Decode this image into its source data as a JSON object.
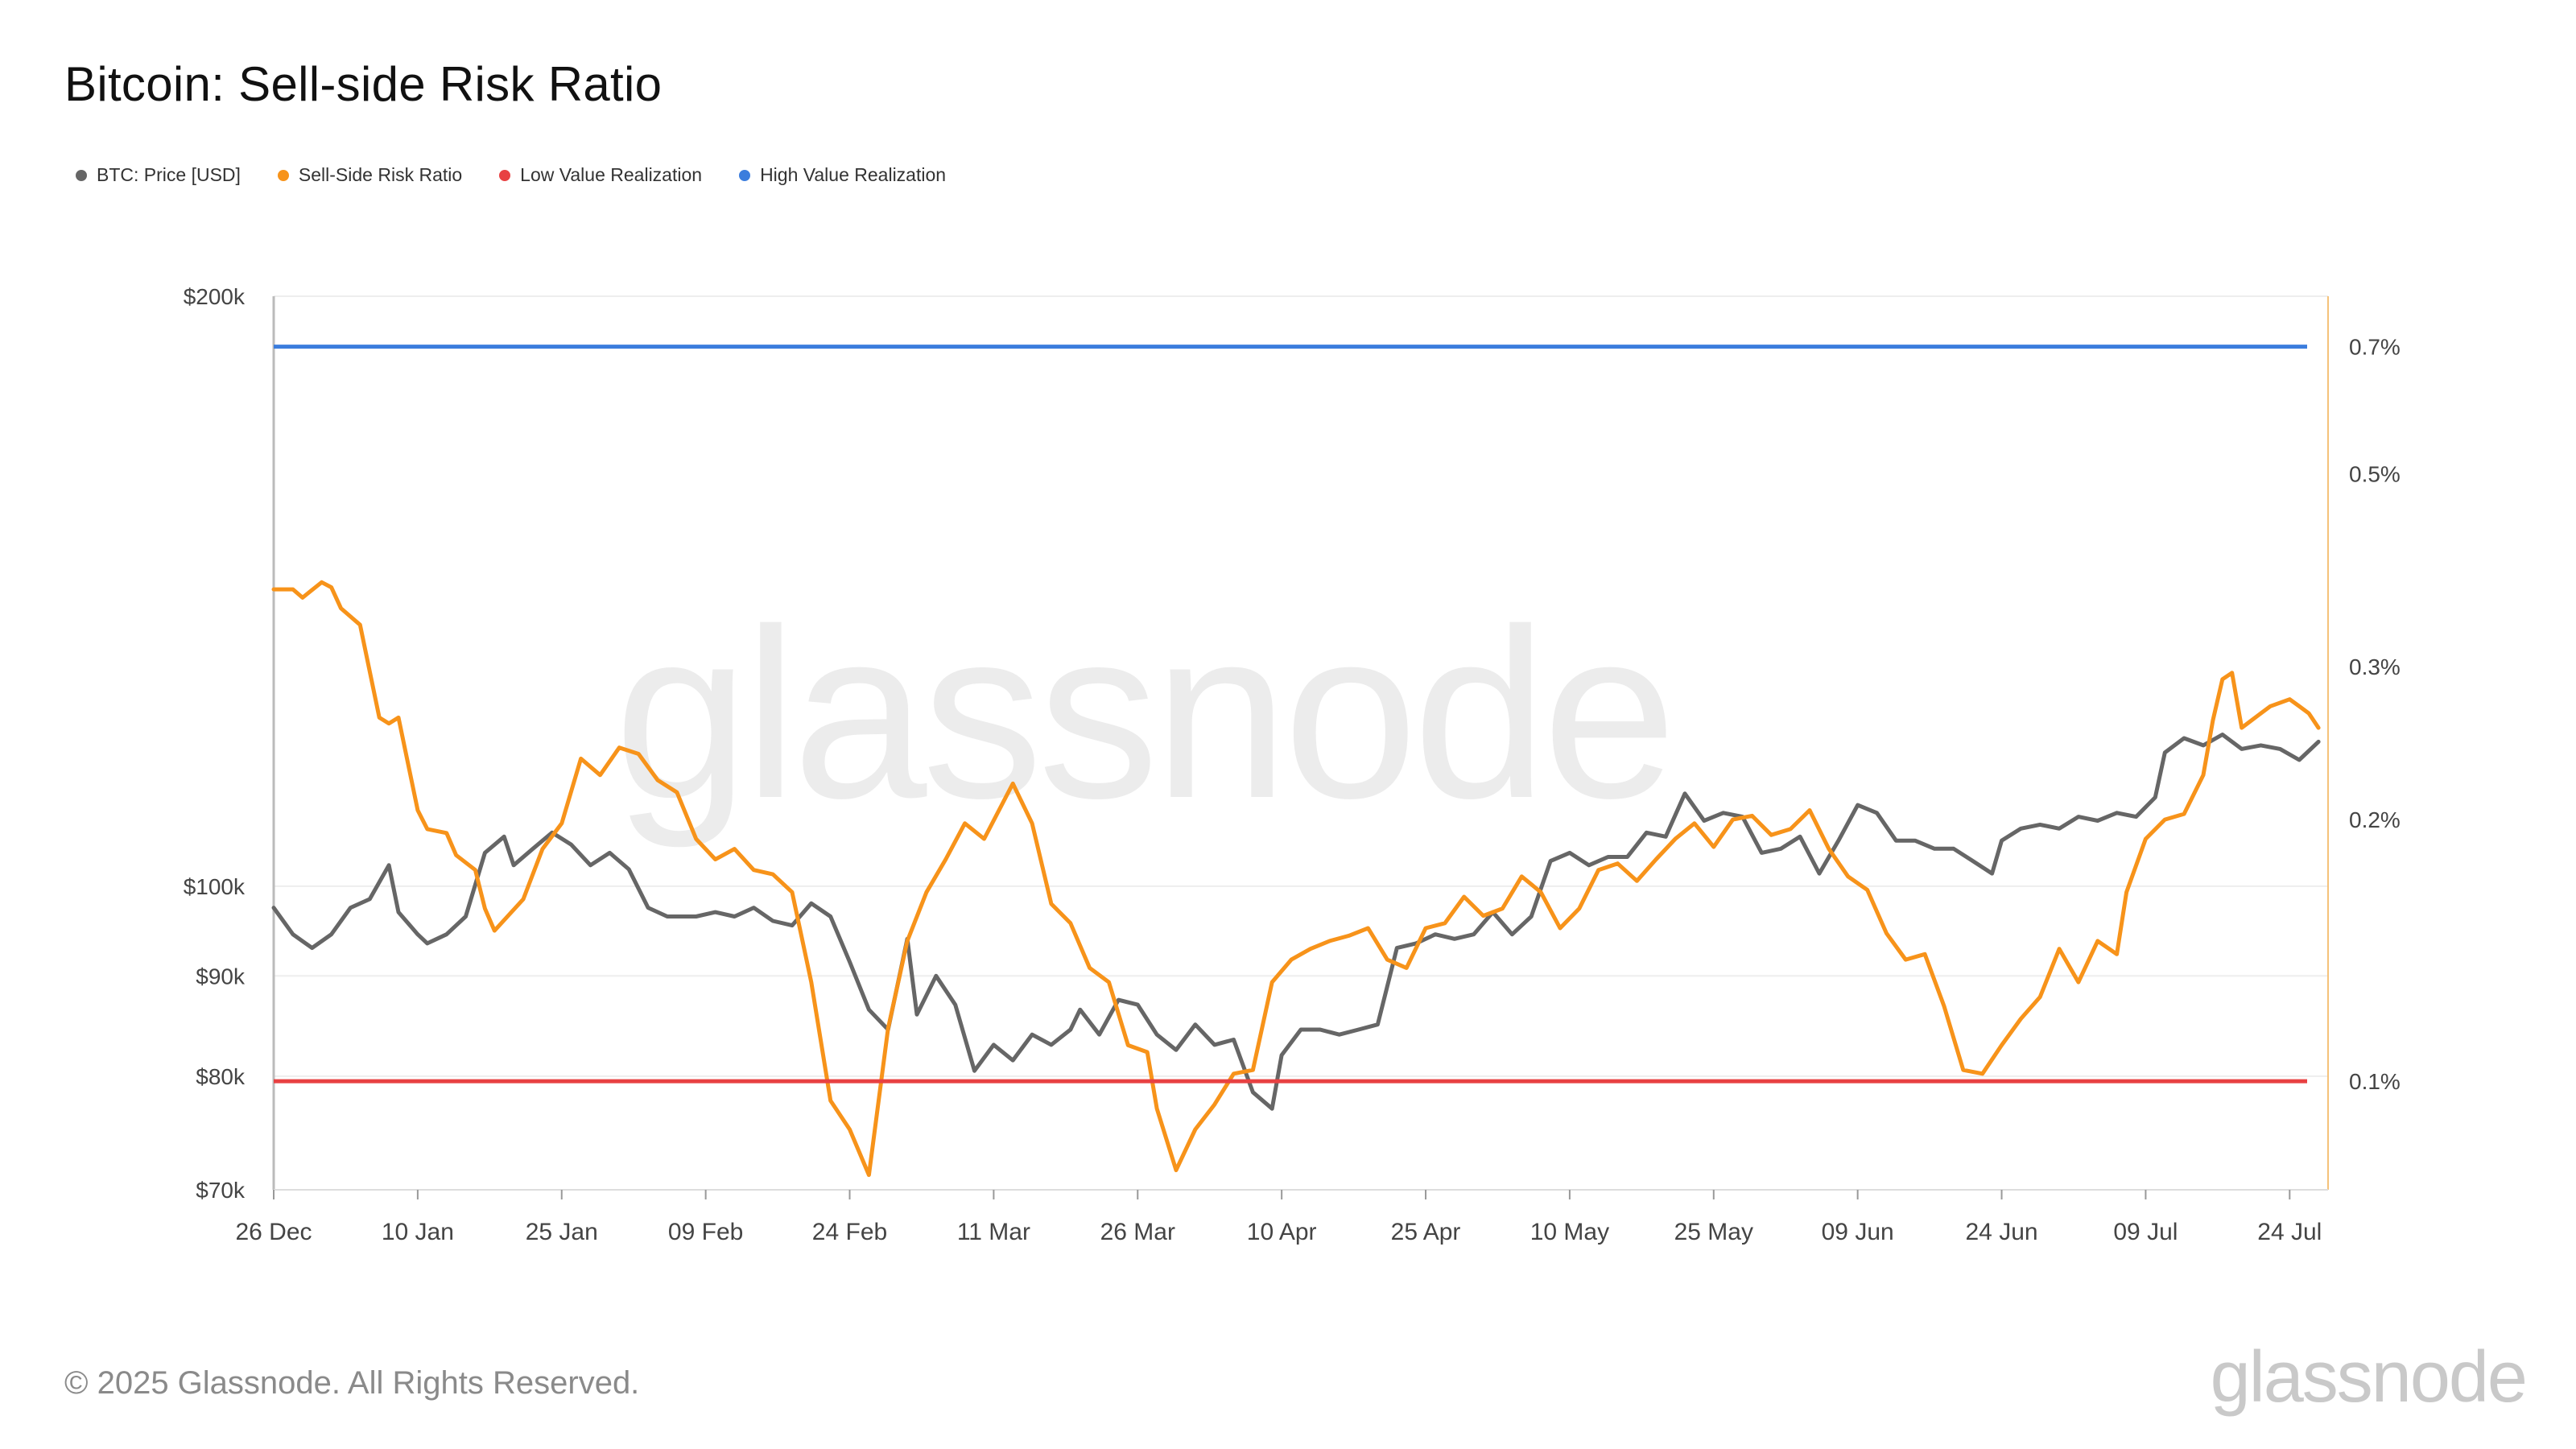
{
  "title": "Bitcoin: Sell-side Risk Ratio",
  "legend": [
    {
      "label": "BTC: Price [USD]",
      "color": "#666666"
    },
    {
      "label": "Sell-Side Risk Ratio",
      "color": "#F7931A"
    },
    {
      "label": "Low Value Realization",
      "color": "#E84142"
    },
    {
      "label": "High Value Realization",
      "color": "#3B7DDD"
    }
  ],
  "watermark": "glassnode",
  "footer": {
    "copyright": "© 2025 Glassnode. All Rights Reserved.",
    "logo": "glassnode"
  },
  "chart_data": {
    "type": "line",
    "x_start": "2024-12-26",
    "x_end": "2025-07-28",
    "x_ticks": [
      "26 Dec",
      "10 Jan",
      "25 Jan",
      "09 Feb",
      "24 Feb",
      "11 Mar",
      "26 Mar",
      "10 Apr",
      "25 Apr",
      "10 May",
      "25 May",
      "09 Jun",
      "24 Jun",
      "09 Jul",
      "24 Jul"
    ],
    "y_left": {
      "scale": "log",
      "range": [
        70000,
        200000
      ],
      "ticks": [
        {
          "v": 70000,
          "label": "$70k"
        },
        {
          "v": 80000,
          "label": "$80k"
        },
        {
          "v": 90000,
          "label": "$90k"
        },
        {
          "v": 100000,
          "label": "$100k"
        },
        {
          "v": 200000,
          "label": "$200k"
        }
      ]
    },
    "y_right": {
      "scale": "log",
      "range": [
        0.075,
        0.8
      ],
      "ticks": [
        {
          "v": 0.1,
          "label": "0.1%"
        },
        {
          "v": 0.2,
          "label": "0.2%"
        },
        {
          "v": 0.3,
          "label": "0.3%"
        },
        {
          "v": 0.5,
          "label": "0.5%"
        },
        {
          "v": 0.7,
          "label": "0.7%"
        }
      ]
    },
    "grid": "horizontal",
    "legend_position": "top-left",
    "series": [
      {
        "name": "BTC: Price [USD]",
        "color": "#666666",
        "axis": "left",
        "points": [
          [
            "2024-12-26",
            97500
          ],
          [
            "2024-12-28",
            94500
          ],
          [
            "2024-12-30",
            93000
          ],
          [
            "2025-01-01",
            94500
          ],
          [
            "2025-01-03",
            97500
          ],
          [
            "2025-01-05",
            98500
          ],
          [
            "2025-01-07",
            102500
          ],
          [
            "2025-01-08",
            97000
          ],
          [
            "2025-01-10",
            94500
          ],
          [
            "2025-01-11",
            93500
          ],
          [
            "2025-01-13",
            94500
          ],
          [
            "2025-01-15",
            96500
          ],
          [
            "2025-01-17",
            104000
          ],
          [
            "2025-01-19",
            106000
          ],
          [
            "2025-01-20",
            102500
          ],
          [
            "2025-01-22",
            104500
          ],
          [
            "2025-01-24",
            106500
          ],
          [
            "2025-01-26",
            105000
          ],
          [
            "2025-01-28",
            102500
          ],
          [
            "2025-01-30",
            104000
          ],
          [
            "2025-02-01",
            102000
          ],
          [
            "2025-02-03",
            97500
          ],
          [
            "2025-02-05",
            96500
          ],
          [
            "2025-02-08",
            96500
          ],
          [
            "2025-02-10",
            97000
          ],
          [
            "2025-02-12",
            96500
          ],
          [
            "2025-02-14",
            97500
          ],
          [
            "2025-02-16",
            96000
          ],
          [
            "2025-02-18",
            95500
          ],
          [
            "2025-02-20",
            98000
          ],
          [
            "2025-02-22",
            96500
          ],
          [
            "2025-02-24",
            91500
          ],
          [
            "2025-02-26",
            86500
          ],
          [
            "2025-02-28",
            84500
          ],
          [
            "2025-03-02",
            94000
          ],
          [
            "2025-03-03",
            86000
          ],
          [
            "2025-03-05",
            90000
          ],
          [
            "2025-03-07",
            87000
          ],
          [
            "2025-03-09",
            80500
          ],
          [
            "2025-03-11",
            83000
          ],
          [
            "2025-03-13",
            81500
          ],
          [
            "2025-03-15",
            84000
          ],
          [
            "2025-03-17",
            83000
          ],
          [
            "2025-03-19",
            84500
          ],
          [
            "2025-03-20",
            86500
          ],
          [
            "2025-03-22",
            84000
          ],
          [
            "2025-03-24",
            87500
          ],
          [
            "2025-03-26",
            87000
          ],
          [
            "2025-03-28",
            84000
          ],
          [
            "2025-03-30",
            82500
          ],
          [
            "2025-04-01",
            85000
          ],
          [
            "2025-04-03",
            83000
          ],
          [
            "2025-04-05",
            83500
          ],
          [
            "2025-04-07",
            78500
          ],
          [
            "2025-04-09",
            77000
          ],
          [
            "2025-04-10",
            82000
          ],
          [
            "2025-04-12",
            84500
          ],
          [
            "2025-04-14",
            84500
          ],
          [
            "2025-04-16",
            84000
          ],
          [
            "2025-04-18",
            84500
          ],
          [
            "2025-04-20",
            85000
          ],
          [
            "2025-04-22",
            93000
          ],
          [
            "2025-04-24",
            93500
          ],
          [
            "2025-04-26",
            94500
          ],
          [
            "2025-04-28",
            94000
          ],
          [
            "2025-04-30",
            94500
          ],
          [
            "2025-05-02",
            97000
          ],
          [
            "2025-05-04",
            94500
          ],
          [
            "2025-05-06",
            96500
          ],
          [
            "2025-05-08",
            103000
          ],
          [
            "2025-05-10",
            104000
          ],
          [
            "2025-05-12",
            102500
          ],
          [
            "2025-05-14",
            103500
          ],
          [
            "2025-05-16",
            103500
          ],
          [
            "2025-05-18",
            106500
          ],
          [
            "2025-05-20",
            106000
          ],
          [
            "2025-05-22",
            111500
          ],
          [
            "2025-05-24",
            108000
          ],
          [
            "2025-05-26",
            109000
          ],
          [
            "2025-05-28",
            108500
          ],
          [
            "2025-05-30",
            104000
          ],
          [
            "2025-06-01",
            104500
          ],
          [
            "2025-06-03",
            106000
          ],
          [
            "2025-06-05",
            101500
          ],
          [
            "2025-06-07",
            105500
          ],
          [
            "2025-06-09",
            110000
          ],
          [
            "2025-06-11",
            109000
          ],
          [
            "2025-06-13",
            105500
          ],
          [
            "2025-06-15",
            105500
          ],
          [
            "2025-06-17",
            104500
          ],
          [
            "2025-06-19",
            104500
          ],
          [
            "2025-06-21",
            103000
          ],
          [
            "2025-06-23",
            101500
          ],
          [
            "2025-06-24",
            105500
          ],
          [
            "2025-06-26",
            107000
          ],
          [
            "2025-06-28",
            107500
          ],
          [
            "2025-06-30",
            107000
          ],
          [
            "2025-07-02",
            108500
          ],
          [
            "2025-07-04",
            108000
          ],
          [
            "2025-07-06",
            109000
          ],
          [
            "2025-07-08",
            108500
          ],
          [
            "2025-07-10",
            111000
          ],
          [
            "2025-07-11",
            117000
          ],
          [
            "2025-07-13",
            119000
          ],
          [
            "2025-07-15",
            118000
          ],
          [
            "2025-07-17",
            119500
          ],
          [
            "2025-07-19",
            117500
          ],
          [
            "2025-07-21",
            118000
          ],
          [
            "2025-07-23",
            117500
          ],
          [
            "2025-07-25",
            116000
          ],
          [
            "2025-07-27",
            118500
          ]
        ]
      },
      {
        "name": "Sell-Side Risk Ratio",
        "color": "#F7931A",
        "axis": "right",
        "points": [
          [
            "2024-12-26",
            0.368
          ],
          [
            "2024-12-28",
            0.368
          ],
          [
            "2024-12-29",
            0.36
          ],
          [
            "2024-12-31",
            0.375
          ],
          [
            "2025-01-01",
            0.37
          ],
          [
            "2025-01-02",
            0.35
          ],
          [
            "2025-01-04",
            0.335
          ],
          [
            "2025-01-06",
            0.262
          ],
          [
            "2025-01-07",
            0.258
          ],
          [
            "2025-01-08",
            0.262
          ],
          [
            "2025-01-10",
            0.205
          ],
          [
            "2025-01-11",
            0.195
          ],
          [
            "2025-01-13",
            0.193
          ],
          [
            "2025-01-14",
            0.182
          ],
          [
            "2025-01-16",
            0.175
          ],
          [
            "2025-01-17",
            0.158
          ],
          [
            "2025-01-18",
            0.149
          ],
          [
            "2025-01-21",
            0.162
          ],
          [
            "2025-01-23",
            0.185
          ],
          [
            "2025-01-25",
            0.198
          ],
          [
            "2025-01-27",
            0.235
          ],
          [
            "2025-01-29",
            0.225
          ],
          [
            "2025-01-31",
            0.242
          ],
          [
            "2025-02-02",
            0.238
          ],
          [
            "2025-02-04",
            0.222
          ],
          [
            "2025-02-06",
            0.215
          ],
          [
            "2025-02-08",
            0.19
          ],
          [
            "2025-02-10",
            0.18
          ],
          [
            "2025-02-12",
            0.185
          ],
          [
            "2025-02-14",
            0.175
          ],
          [
            "2025-02-16",
            0.173
          ],
          [
            "2025-02-18",
            0.165
          ],
          [
            "2025-02-20",
            0.13
          ],
          [
            "2025-02-22",
            0.095
          ],
          [
            "2025-02-24",
            0.088
          ],
          [
            "2025-02-26",
            0.078
          ],
          [
            "2025-02-28",
            0.115
          ],
          [
            "2025-03-02",
            0.145
          ],
          [
            "2025-03-04",
            0.165
          ],
          [
            "2025-03-06",
            0.18
          ],
          [
            "2025-03-08",
            0.198
          ],
          [
            "2025-03-10",
            0.19
          ],
          [
            "2025-03-13",
            0.22
          ],
          [
            "2025-03-15",
            0.198
          ],
          [
            "2025-03-17",
            0.16
          ],
          [
            "2025-03-19",
            0.152
          ],
          [
            "2025-03-21",
            0.135
          ],
          [
            "2025-03-23",
            0.13
          ],
          [
            "2025-03-25",
            0.11
          ],
          [
            "2025-03-27",
            0.108
          ],
          [
            "2025-03-28",
            0.093
          ],
          [
            "2025-03-30",
            0.079
          ],
          [
            "2025-04-01",
            0.088
          ],
          [
            "2025-04-03",
            0.094
          ],
          [
            "2025-04-05",
            0.102
          ],
          [
            "2025-04-07",
            0.103
          ],
          [
            "2025-04-09",
            0.13
          ],
          [
            "2025-04-11",
            0.138
          ],
          [
            "2025-04-13",
            0.142
          ],
          [
            "2025-04-15",
            0.145
          ],
          [
            "2025-04-17",
            0.147
          ],
          [
            "2025-04-19",
            0.15
          ],
          [
            "2025-04-21",
            0.138
          ],
          [
            "2025-04-23",
            0.135
          ],
          [
            "2025-04-25",
            0.15
          ],
          [
            "2025-04-27",
            0.152
          ],
          [
            "2025-04-29",
            0.163
          ],
          [
            "2025-05-01",
            0.155
          ],
          [
            "2025-05-03",
            0.158
          ],
          [
            "2025-05-05",
            0.172
          ],
          [
            "2025-05-07",
            0.165
          ],
          [
            "2025-05-09",
            0.15
          ],
          [
            "2025-05-11",
            0.158
          ],
          [
            "2025-05-13",
            0.175
          ],
          [
            "2025-05-15",
            0.178
          ],
          [
            "2025-05-17",
            0.17
          ],
          [
            "2025-05-19",
            0.18
          ],
          [
            "2025-05-21",
            0.19
          ],
          [
            "2025-05-23",
            0.198
          ],
          [
            "2025-05-25",
            0.186
          ],
          [
            "2025-05-27",
            0.2
          ],
          [
            "2025-05-29",
            0.202
          ],
          [
            "2025-05-31",
            0.192
          ],
          [
            "2025-06-02",
            0.195
          ],
          [
            "2025-06-04",
            0.205
          ],
          [
            "2025-06-06",
            0.185
          ],
          [
            "2025-06-08",
            0.172
          ],
          [
            "2025-06-10",
            0.166
          ],
          [
            "2025-06-12",
            0.148
          ],
          [
            "2025-06-14",
            0.138
          ],
          [
            "2025-06-16",
            0.14
          ],
          [
            "2025-06-18",
            0.122
          ],
          [
            "2025-06-20",
            0.103
          ],
          [
            "2025-06-22",
            0.102
          ],
          [
            "2025-06-24",
            0.11
          ],
          [
            "2025-06-26",
            0.118
          ],
          [
            "2025-06-28",
            0.125
          ],
          [
            "2025-06-30",
            0.142
          ],
          [
            "2025-07-02",
            0.13
          ],
          [
            "2025-07-04",
            0.145
          ],
          [
            "2025-07-06",
            0.14
          ],
          [
            "2025-07-07",
            0.165
          ],
          [
            "2025-07-09",
            0.19
          ],
          [
            "2025-07-11",
            0.2
          ],
          [
            "2025-07-13",
            0.203
          ],
          [
            "2025-07-15",
            0.225
          ],
          [
            "2025-07-16",
            0.26
          ],
          [
            "2025-07-17",
            0.29
          ],
          [
            "2025-07-18",
            0.295
          ],
          [
            "2025-07-19",
            0.255
          ],
          [
            "2025-07-21",
            0.265
          ],
          [
            "2025-07-22",
            0.27
          ],
          [
            "2025-07-24",
            0.275
          ],
          [
            "2025-07-25",
            0.27
          ],
          [
            "2025-07-26",
            0.265
          ],
          [
            "2025-07-27",
            0.255
          ]
        ]
      },
      {
        "name": "Low Value Realization",
        "color": "#E84142",
        "axis": "right",
        "constant": 0.1
      },
      {
        "name": "High Value Realization",
        "color": "#3B7DDD",
        "axis": "right",
        "constant": 0.7
      }
    ]
  }
}
